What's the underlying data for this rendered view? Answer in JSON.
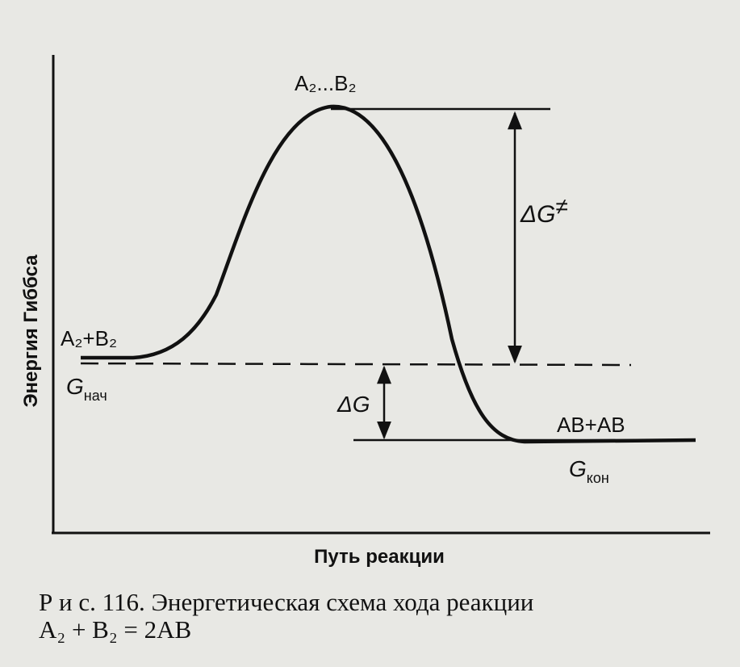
{
  "diagram": {
    "y_axis_label": "Энергия Гиббса",
    "x_axis_label": "Путь реакции",
    "transition_state": "A₂...B₂",
    "reactants": "A₂+B₂",
    "products": "AB+AB",
    "activation_energy": {
      "symbol": "ΔG",
      "superscript": "≠"
    },
    "reaction_energy": "ΔG",
    "initial_energy": {
      "symbol": "G",
      "subscript": "нач"
    },
    "final_energy": {
      "symbol": "G",
      "subscript": "кон"
    }
  },
  "caption": {
    "line1": "Р и с. 116. Энергетическая схема хода реакции",
    "line2": "A₂ + B₂ = 2AB"
  }
}
